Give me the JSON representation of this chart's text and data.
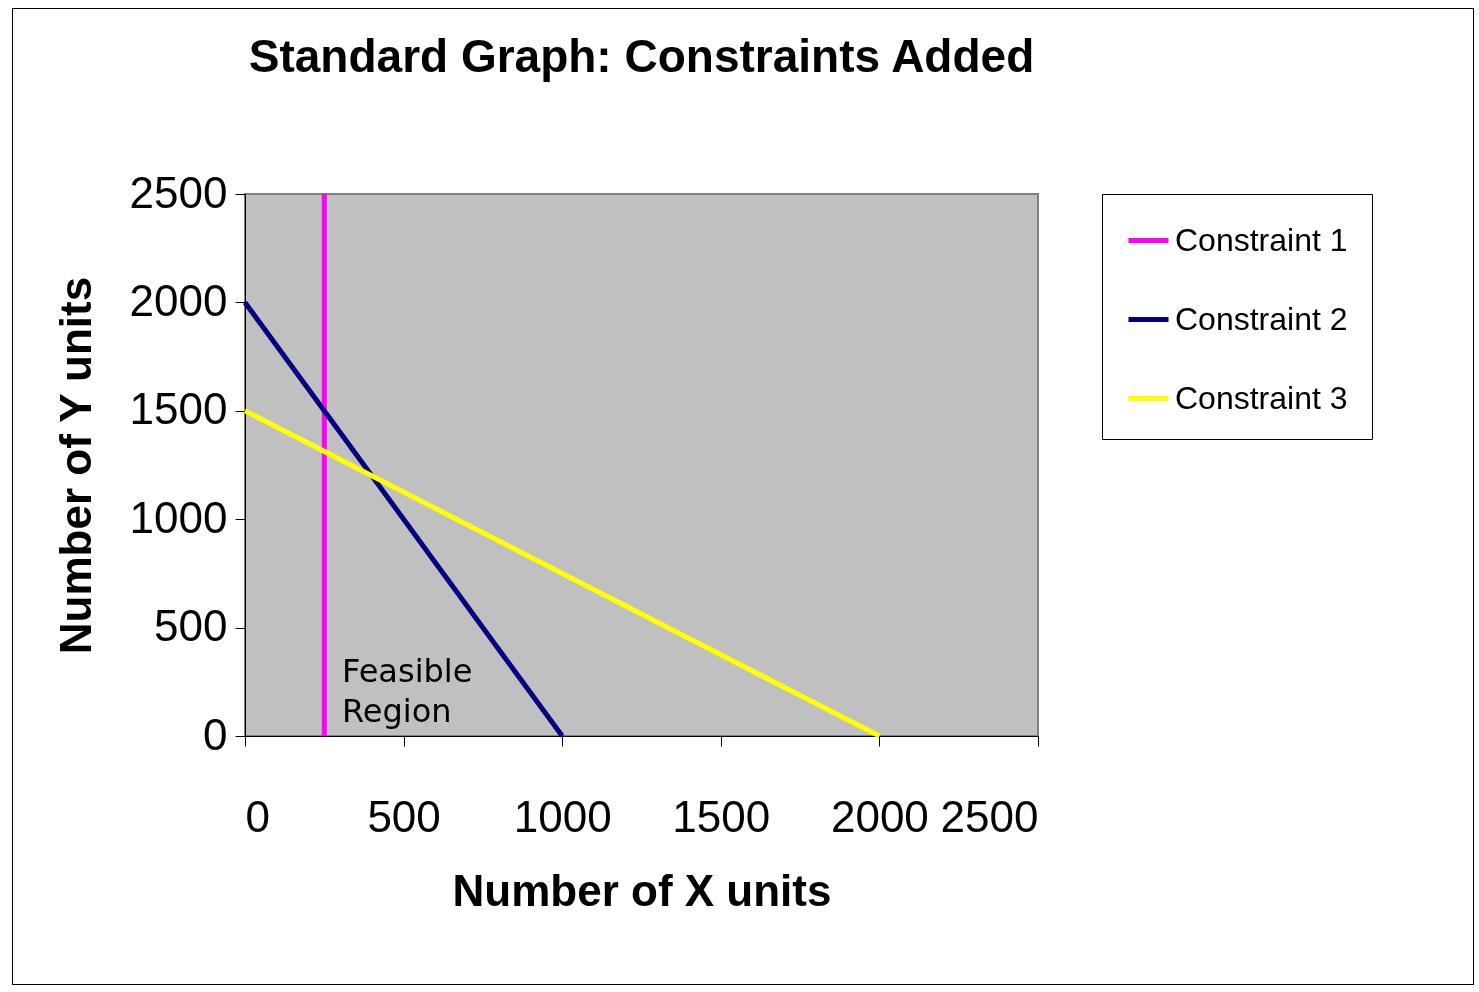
{
  "chart_data": {
    "type": "line",
    "title": "Standard Graph: Constraints Added",
    "xlabel": "Number of X units",
    "ylabel": "Number of Y units",
    "xlim": [
      0,
      2500
    ],
    "ylim": [
      0,
      2500
    ],
    "xticks": [
      0,
      500,
      1000,
      1500,
      2000,
      2500
    ],
    "yticks": [
      0,
      500,
      1000,
      1500,
      2000,
      2500
    ],
    "grid": false,
    "legend": "right",
    "marker": "none",
    "line_style": "solid",
    "annotations": [
      "Feasible Region"
    ],
    "series": [
      {
        "name": "Constraint 1",
        "color": "#ff00ff",
        "x": [
          250,
          250
        ],
        "values": [
          0,
          2500
        ]
      },
      {
        "name": "Constraint 2",
        "color": "#000080",
        "x": [
          0,
          1000
        ],
        "values": [
          2000,
          0
        ]
      },
      {
        "name": "Constraint 3",
        "color": "#ffff00",
        "x": [
          0,
          2000
        ],
        "values": [
          1500,
          0
        ]
      }
    ]
  }
}
